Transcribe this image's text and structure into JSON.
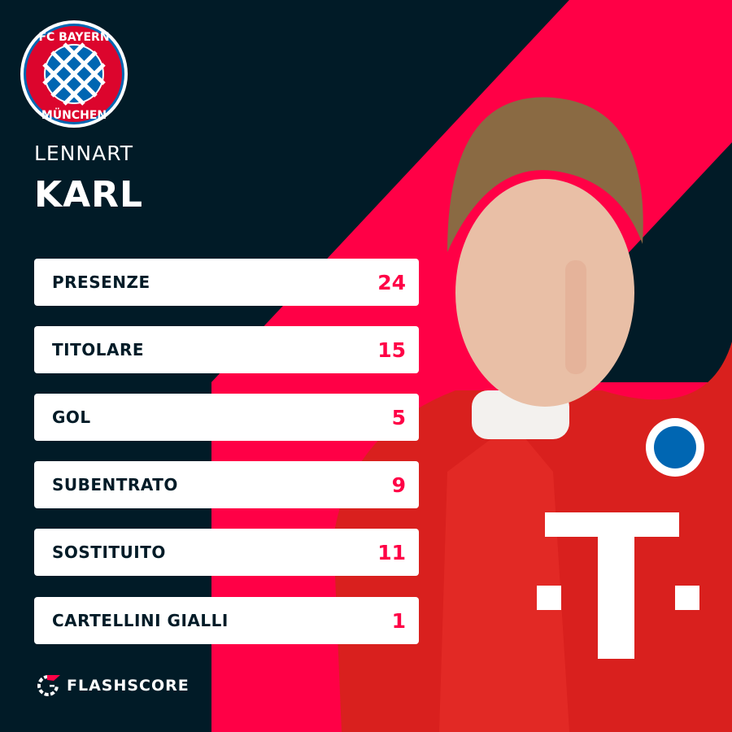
{
  "club": {
    "name": "FC Bayern München",
    "crest_text_top": "FC BAYERN",
    "crest_text_bottom": "MÜNCHEN"
  },
  "player": {
    "first_name": "LENNART",
    "last_name": "KARL"
  },
  "stats": [
    {
      "label": "PRESENZE",
      "value": "24"
    },
    {
      "label": "TITOLARE",
      "value": "15"
    },
    {
      "label": "GOL",
      "value": "5"
    },
    {
      "label": "SUBENTRATO",
      "value": "9"
    },
    {
      "label": "SOSTITUITO",
      "value": "11"
    },
    {
      "label": "CARTELLINI GIALLI",
      "value": "1"
    }
  ],
  "brand": {
    "name": "FLASHSCORE"
  },
  "colors": {
    "background": "#011b27",
    "accent": "#ff0046",
    "card": "#ffffff"
  }
}
